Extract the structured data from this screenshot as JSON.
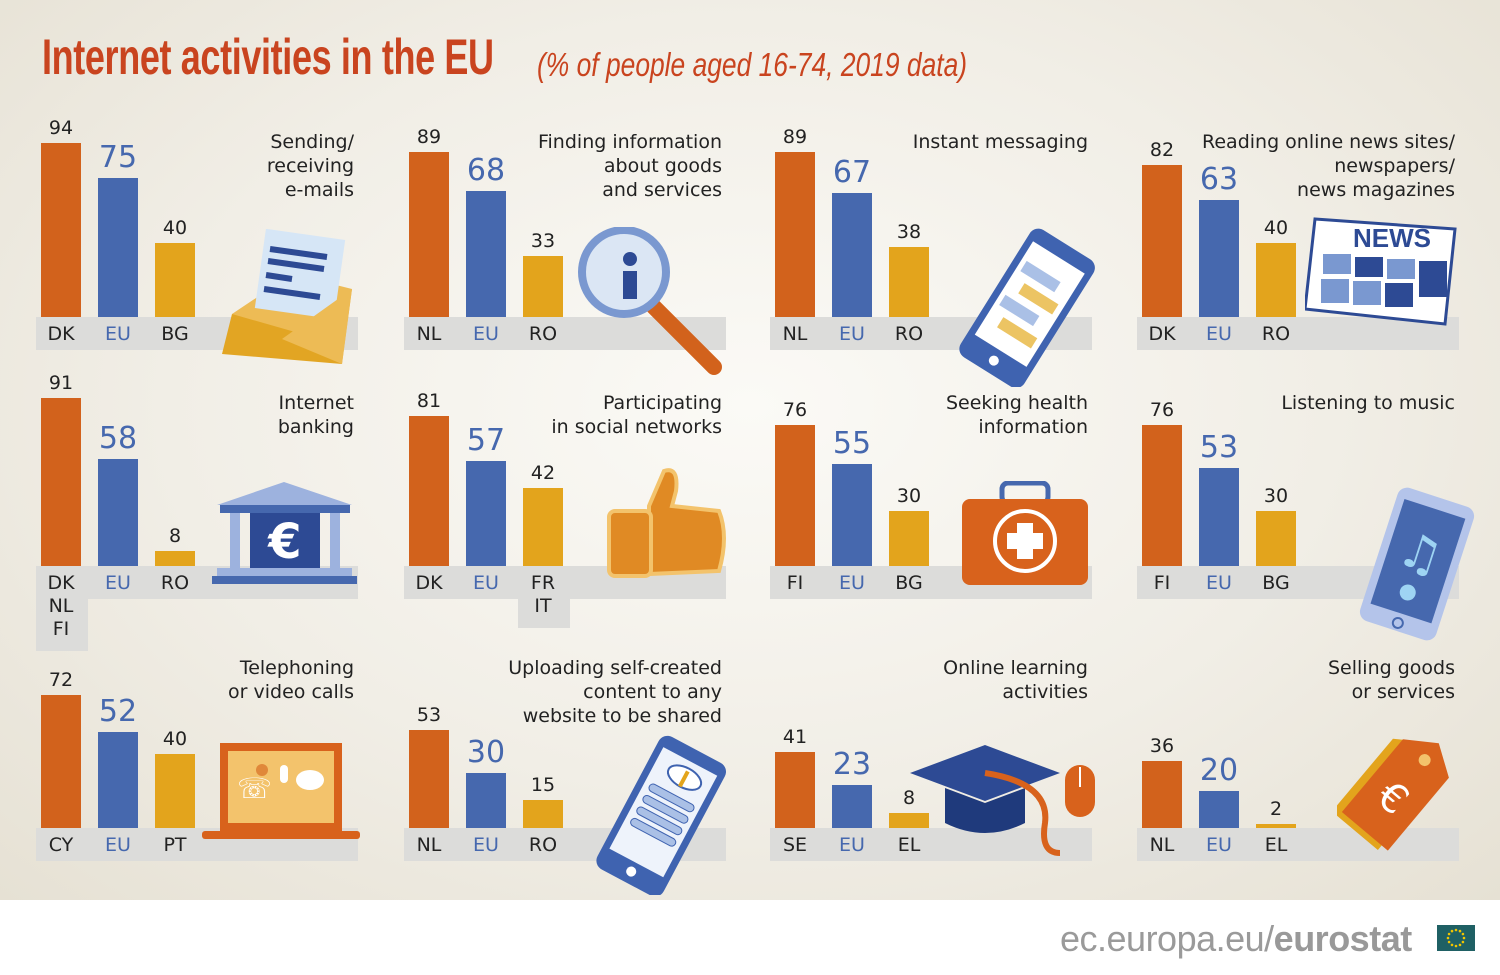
{
  "title": "Internet activities in the EU",
  "subtitle": "(% of people aged 16-74, 2019 data)",
  "footer": {
    "prefix": "ec.europa.eu/",
    "brand": "eurostat"
  },
  "colors": {
    "max": "#d2621c",
    "eu": "#4668ae",
    "min": "#e3a41c",
    "title": "#c9441f"
  },
  "chart_data": {
    "type": "bar",
    "unit": "%",
    "ylim": [
      0,
      100
    ],
    "panels": [
      {
        "title": "Sending/\nreceiving\ne-mails",
        "icon": "envelope-icon",
        "categories": [
          "DK",
          "EU",
          "BG"
        ],
        "values": [
          94,
          75,
          40
        ]
      },
      {
        "title": "Finding information\nabout goods\nand services",
        "icon": "magnifier-icon",
        "categories": [
          "NL",
          "EU",
          "RO"
        ],
        "values": [
          89,
          68,
          33
        ]
      },
      {
        "title": "Instant messaging",
        "icon": "smartphone-chat-icon",
        "categories": [
          "NL",
          "EU",
          "RO"
        ],
        "values": [
          89,
          67,
          38
        ]
      },
      {
        "title": "Reading online news sites/\nnewspapers/\nnews magazines",
        "icon": "newspaper-icon",
        "icon_text": "NEWS",
        "categories": [
          "DK",
          "EU",
          "RO"
        ],
        "values": [
          82,
          63,
          40
        ]
      },
      {
        "title": "Internet\nbanking",
        "icon": "bank-euro-icon",
        "categories": [
          "DK\nNL\nFI",
          "EU",
          "RO"
        ],
        "values": [
          91,
          58,
          8
        ]
      },
      {
        "title": "Participating\nin social networks",
        "icon": "thumbs-up-icon",
        "categories": [
          "DK",
          "EU",
          "FR\nIT"
        ],
        "values": [
          81,
          57,
          42
        ]
      },
      {
        "title": "Seeking health\ninformation",
        "icon": "first-aid-kit-icon",
        "categories": [
          "FI",
          "EU",
          "BG"
        ],
        "values": [
          76,
          55,
          30
        ]
      },
      {
        "title": "Listening to music",
        "icon": "music-tablet-icon",
        "categories": [
          "FI",
          "EU",
          "BG"
        ],
        "values": [
          76,
          53,
          30
        ]
      },
      {
        "title": "Telephoning\nor video calls",
        "icon": "laptop-call-icon",
        "categories": [
          "CY",
          "EU",
          "PT"
        ],
        "values": [
          72,
          52,
          40
        ]
      },
      {
        "title": "Uploading self-created\ncontent to any\nwebsite to be shared",
        "icon": "phone-upload-icon",
        "categories": [
          "NL",
          "EU",
          "RO"
        ],
        "values": [
          53,
          30,
          15
        ]
      },
      {
        "title": "Online learning\nactivities",
        "icon": "graduation-cap-mouse-icon",
        "categories": [
          "SE",
          "EU",
          "EL"
        ],
        "values": [
          41,
          23,
          8
        ]
      },
      {
        "title": "Selling goods\nor services",
        "icon": "euro-price-tag-icon",
        "categories": [
          "NL",
          "EU",
          "EL"
        ],
        "values": [
          36,
          20,
          2
        ]
      }
    ]
  }
}
